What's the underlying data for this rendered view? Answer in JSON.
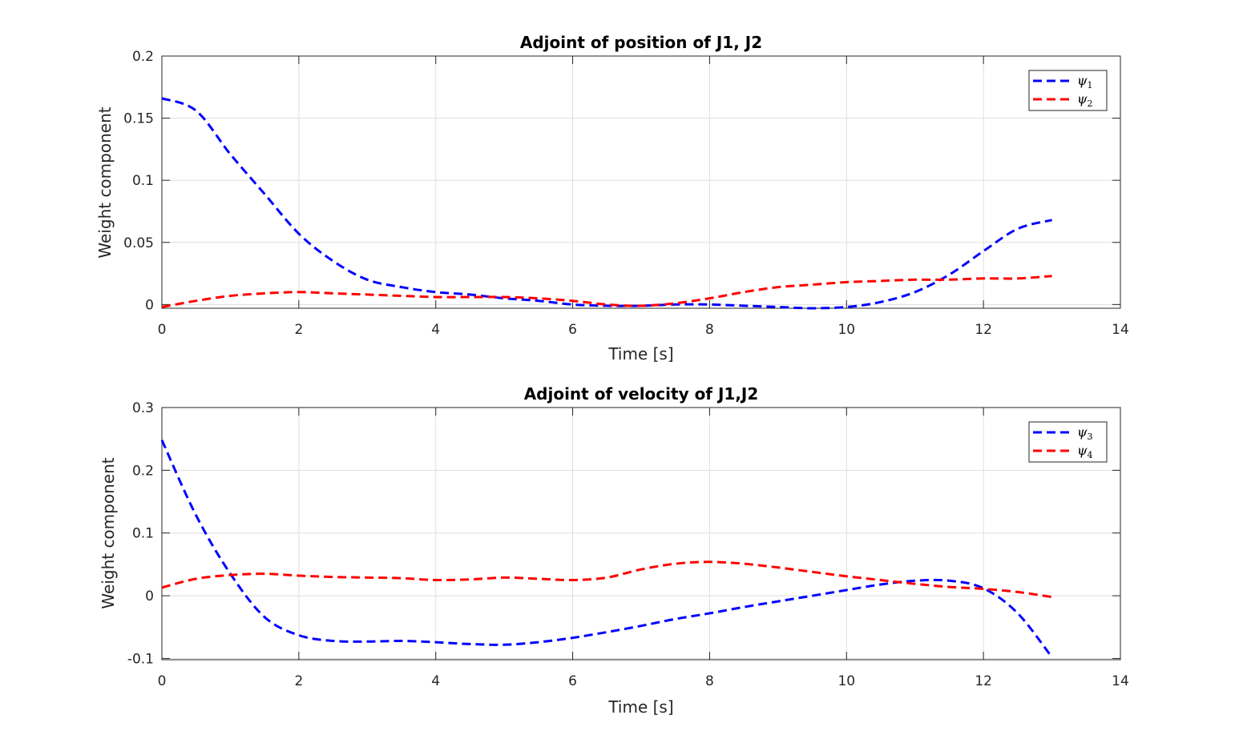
{
  "chart_data": [
    {
      "type": "line",
      "title": "Adjoint of position of J1, J2",
      "xlabel": "Time [s]",
      "ylabel": "Weight component",
      "xlim": [
        0,
        14
      ],
      "ylim": [
        -0.003,
        0.2
      ],
      "xticks": [
        0,
        2,
        4,
        6,
        8,
        10,
        12,
        14
      ],
      "xtick_labels": [
        "0",
        "2",
        "4",
        "6",
        "8",
        "10",
        "12",
        "14"
      ],
      "yticks": [
        0,
        0.05,
        0.1,
        0.15,
        0.2
      ],
      "ytick_labels": [
        "0",
        "0.05",
        "0.1",
        "0.15",
        "0.2"
      ],
      "grid": true,
      "legend_position": "top-right",
      "series": [
        {
          "name": "ψ",
          "subscript": "1",
          "color": "#0000ff",
          "line_style": "dashed",
          "x": [
            0,
            0.5,
            1,
            1.5,
            2,
            2.5,
            3,
            3.5,
            4,
            4.5,
            5,
            5.5,
            6,
            6.5,
            7,
            7.5,
            8,
            8.5,
            9,
            9.5,
            10,
            10.5,
            11,
            11.5,
            12,
            12.5,
            13
          ],
          "y": [
            0.166,
            0.156,
            0.121,
            0.089,
            0.057,
            0.035,
            0.02,
            0.014,
            0.01,
            0.008,
            0.005,
            0.003,
            0.0,
            -0.001,
            -0.001,
            -0.0,
            -0.0,
            -0.001,
            -0.002,
            -0.003,
            -0.002,
            0.002,
            0.01,
            0.024,
            0.043,
            0.061,
            0.068
          ]
        },
        {
          "name": "ψ",
          "subscript": "2",
          "color": "#ff0000",
          "line_style": "dashed",
          "x": [
            0,
            0.5,
            1,
            1.5,
            2,
            2.5,
            3,
            3.5,
            4,
            4.5,
            5,
            5.5,
            6,
            6.5,
            7,
            7.5,
            8,
            8.5,
            9,
            9.5,
            10,
            10.5,
            11,
            11.5,
            12,
            12.5,
            13
          ],
          "y": [
            -0.002,
            0.003,
            0.007,
            0.009,
            0.01,
            0.009,
            0.008,
            0.007,
            0.006,
            0.006,
            0.006,
            0.005,
            0.003,
            0.0,
            -0.001,
            0.001,
            0.005,
            0.01,
            0.014,
            0.016,
            0.018,
            0.019,
            0.02,
            0.02,
            0.021,
            0.021,
            0.023
          ]
        }
      ]
    },
    {
      "type": "line",
      "title": "Adjoint of velocity of J1,J2",
      "xlabel": "Time [s]",
      "ylabel": "Weight component",
      "xlim": [
        0,
        14
      ],
      "ylim": [
        -0.102,
        0.3
      ],
      "xticks": [
        0,
        2,
        4,
        6,
        8,
        10,
        12,
        14
      ],
      "xtick_labels": [
        "0",
        "2",
        "4",
        "6",
        "8",
        "10",
        "12",
        "14"
      ],
      "yticks": [
        -0.1,
        0,
        0.1,
        0.2,
        0.3
      ],
      "ytick_labels": [
        "-0.1",
        "0",
        "0.1",
        "0.2",
        "0.3"
      ],
      "grid": true,
      "legend_position": "top-right",
      "series": [
        {
          "name": "ψ",
          "subscript": "3",
          "color": "#0000ff",
          "line_style": "dashed",
          "x": [
            0,
            0.5,
            1,
            1.5,
            2,
            2.5,
            3,
            3.5,
            4,
            4.5,
            5,
            5.5,
            6,
            6.5,
            7,
            7.5,
            8,
            8.5,
            9,
            9.5,
            10,
            10.5,
            11,
            11.5,
            12,
            12.5,
            13
          ],
          "y": [
            0.248,
            0.128,
            0.035,
            -0.034,
            -0.063,
            -0.072,
            -0.073,
            -0.072,
            -0.074,
            -0.077,
            -0.078,
            -0.074,
            -0.067,
            -0.058,
            -0.048,
            -0.037,
            -0.028,
            -0.018,
            -0.009,
            0.0,
            0.009,
            0.018,
            0.024,
            0.024,
            0.012,
            -0.028,
            -0.098
          ]
        },
        {
          "name": "ψ",
          "subscript": "4",
          "color": "#ff0000",
          "line_style": "dashed",
          "x": [
            0,
            0.5,
            1,
            1.5,
            2,
            2.5,
            3,
            3.5,
            4,
            4.5,
            5,
            5.5,
            6,
            6.5,
            7,
            7.5,
            8,
            8.5,
            9,
            9.5,
            10,
            10.5,
            11,
            11.5,
            12,
            12.5,
            13
          ],
          "y": [
            0.013,
            0.027,
            0.033,
            0.035,
            0.032,
            0.03,
            0.029,
            0.028,
            0.025,
            0.026,
            0.029,
            0.027,
            0.025,
            0.029,
            0.042,
            0.051,
            0.054,
            0.051,
            0.045,
            0.038,
            0.031,
            0.025,
            0.019,
            0.014,
            0.011,
            0.006,
            -0.002
          ]
        }
      ]
    }
  ]
}
